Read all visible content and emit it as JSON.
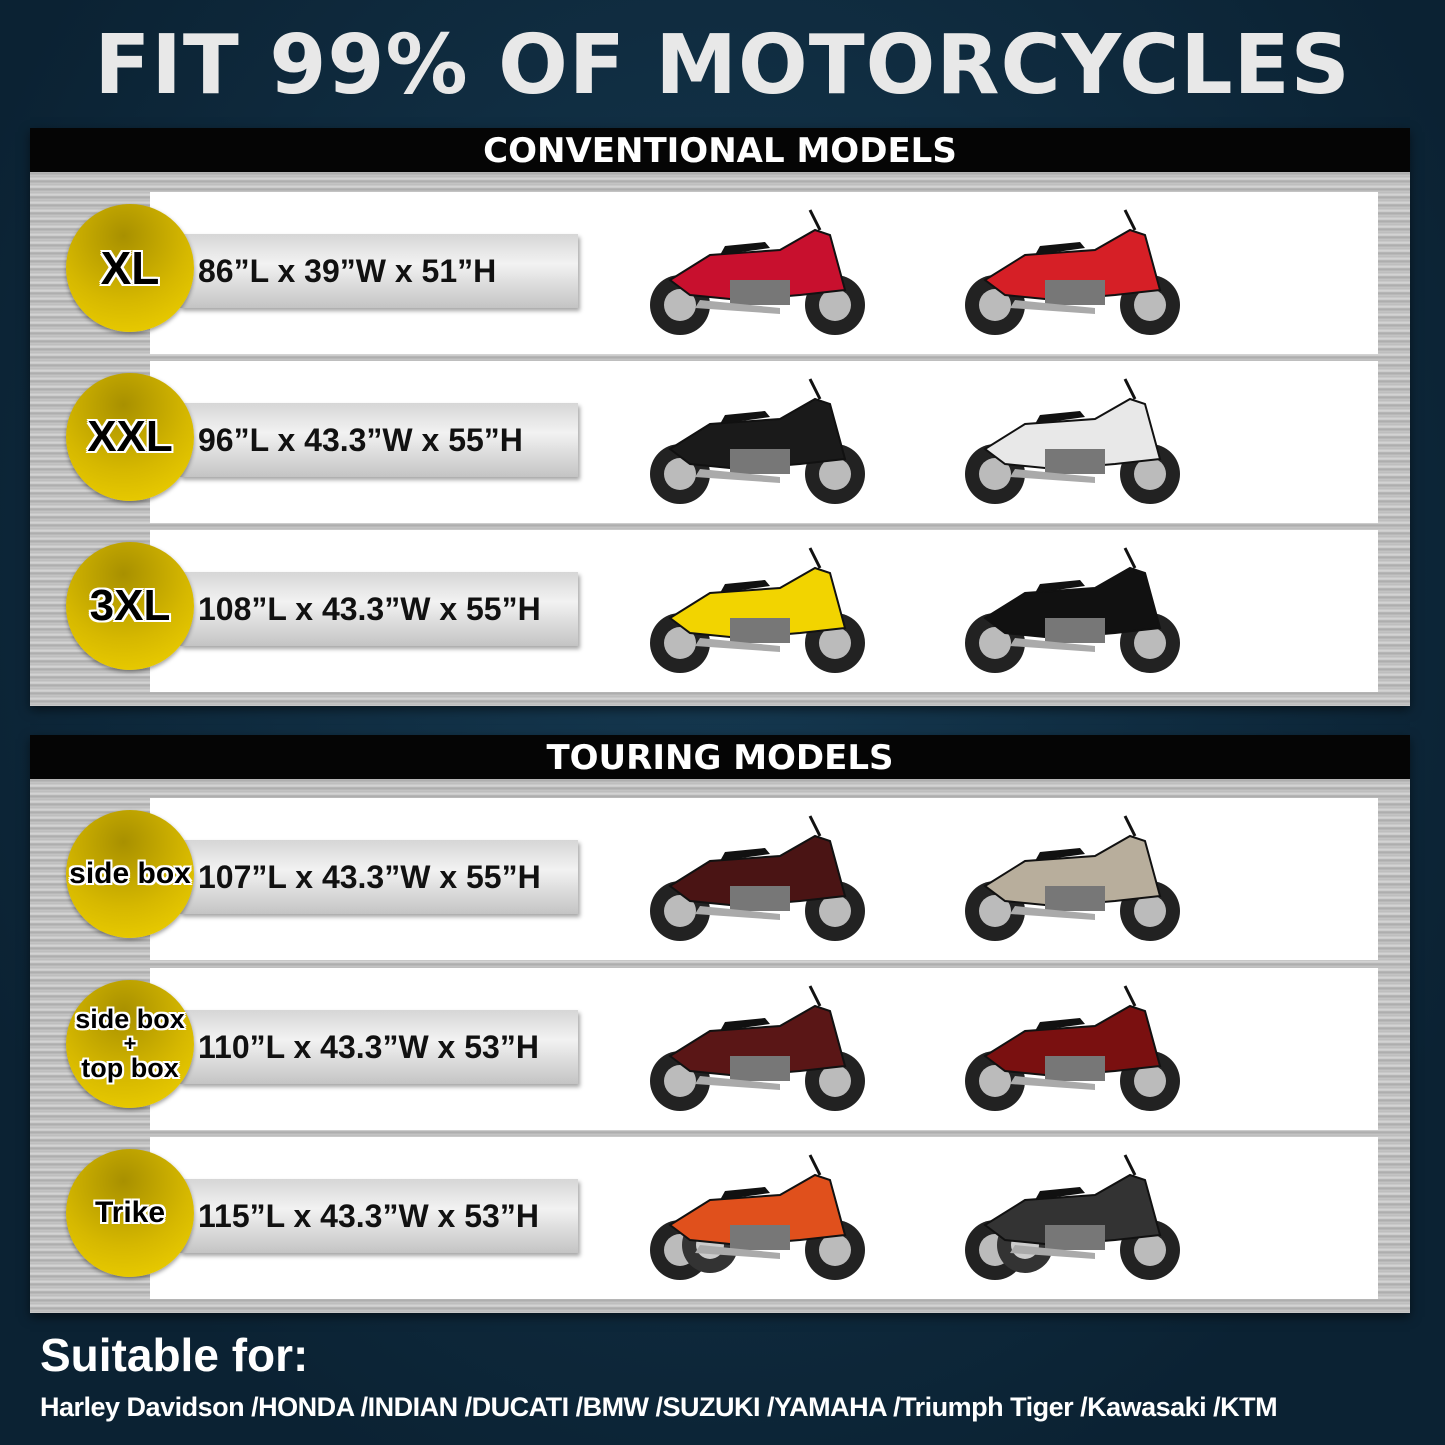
{
  "title": "FIT 99% OF MOTORCYCLES",
  "sections": [
    {
      "heading": "CONVENTIONAL MODELS",
      "rows": [
        {
          "size": "XL",
          "dims": "86”L x 39”W x 51”H",
          "bikes": [
            {
              "color": "#c8102e"
            },
            {
              "color": "#d61f26"
            }
          ]
        },
        {
          "size": "XXL",
          "dims": "96”L x 43.3”W x 55”H",
          "bikes": [
            {
              "color": "#1a1a1a"
            },
            {
              "color": "#e8e8e8"
            }
          ]
        },
        {
          "size": "3XL",
          "dims": "108”L x 43.3”W x 55”H",
          "bikes": [
            {
              "color": "#f2d400"
            },
            {
              "color": "#111111"
            }
          ]
        }
      ]
    },
    {
      "heading": "TOURING MODELS",
      "rows": [
        {
          "size": "side box",
          "dims": "107”L x 43.3”W x 55”H",
          "bikes": [
            {
              "color": "#4a1414"
            },
            {
              "color": "#b8ae9c"
            }
          ]
        },
        {
          "size": "side box + top box",
          "size_lines": [
            "side box",
            "+",
            "top box"
          ],
          "dims": "110”L x 43.3”W x 53”H",
          "bikes": [
            {
              "color": "#5a1616"
            },
            {
              "color": "#7a1010"
            }
          ]
        },
        {
          "size": "Trike",
          "dims": "115”L x 43.3”W x 53”H",
          "bikes": [
            {
              "color": "#e0501c"
            },
            {
              "color": "#333333"
            }
          ]
        }
      ]
    }
  ],
  "footer": {
    "heading": "Suitable for:",
    "brands": "Harley Davidson /HONDA /INDIAN /DUCATI /BMW /SUZUKI /YAMAHA /Triumph Tiger /Kawasaki /KTM"
  }
}
